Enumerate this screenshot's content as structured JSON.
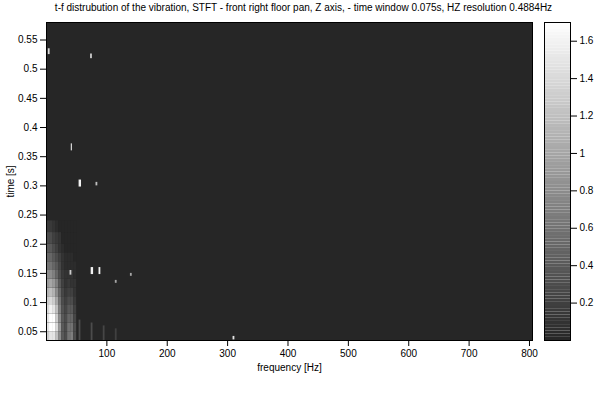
{
  "chart_data": {
    "type": "heatmap",
    "title": "t-f distrubution of the vibration, STFT - front right floor pan, Z axis, - time window 0.075s, HZ resolution 0.4884Hz",
    "x_label": "frequency [Hz]",
    "y_label": "time [s]",
    "xlim": [
      0,
      805
    ],
    "xticks": [
      100,
      200,
      300,
      400,
      500,
      600,
      700,
      800
    ],
    "ylim": [
      0.035,
      0.58
    ],
    "yticks": [
      0.05,
      0.1,
      0.15,
      0.2,
      0.25,
      0.3,
      0.35,
      0.4,
      0.45,
      0.5,
      0.55
    ],
    "colorbar_lim": [
      0,
      1.7
    ],
    "colorbar_ticks": [
      0.2,
      0.4,
      0.6,
      0.8,
      1,
      1.2,
      1.4,
      1.6
    ],
    "grid_cells": {
      "f_edges": [
        0,
        5,
        10,
        15,
        20,
        25,
        30,
        35,
        40,
        45,
        50
      ],
      "t_edges": [
        0.035,
        0.05,
        0.065,
        0.08,
        0.095,
        0.11,
        0.125,
        0.14,
        0.155,
        0.17,
        0.185,
        0.2,
        0.22,
        0.24
      ],
      "values": [
        [
          1.3,
          1.5,
          1.5,
          1.2,
          0.8,
          0.4,
          0.3,
          0.6,
          0.7,
          0.3
        ],
        [
          1.5,
          1.7,
          1.7,
          1.4,
          0.9,
          0.4,
          0.3,
          0.6,
          0.6,
          0.3
        ],
        [
          1.5,
          1.7,
          1.7,
          1.3,
          0.8,
          0.4,
          0.3,
          0.5,
          0.5,
          0.25
        ],
        [
          1.4,
          1.6,
          1.5,
          1.2,
          0.7,
          0.35,
          0.25,
          0.4,
          0.4,
          0.2
        ],
        [
          1.3,
          1.4,
          1.3,
          1.0,
          0.6,
          0.3,
          0.2,
          0.3,
          0.3,
          0.15
        ],
        [
          1.1,
          1.2,
          1.1,
          0.8,
          0.5,
          0.25,
          0.15,
          0.2,
          0.2,
          0.1
        ],
        [
          0.9,
          1.0,
          0.9,
          0.7,
          0.4,
          0.2,
          0.1,
          0.15,
          0.1,
          0.1
        ],
        [
          0.8,
          0.8,
          0.7,
          0.5,
          0.3,
          0.15,
          0.1,
          0.1,
          0.1,
          0.05
        ],
        [
          0.6,
          0.6,
          0.5,
          0.4,
          0.25,
          0.1,
          0.05,
          0.05,
          0.05,
          0.05
        ],
        [
          0.5,
          0.5,
          0.4,
          0.3,
          0.2,
          0.1,
          0.05,
          0.05,
          0.05,
          0
        ],
        [
          0.4,
          0.4,
          0.3,
          0.2,
          0.1,
          0.05,
          0,
          0,
          0,
          0
        ],
        [
          0.3,
          0.3,
          0.2,
          0.15,
          0.1,
          0,
          0,
          0,
          0,
          0
        ],
        [
          0.15,
          0.15,
          0.1,
          0.05,
          0,
          0,
          0,
          0,
          0,
          0
        ]
      ]
    },
    "spots": [
      {
        "f": [
          3,
          6
        ],
        "t": [
          0.525,
          0.535
        ],
        "value": 1.4
      },
      {
        "f": [
          73,
          76
        ],
        "t": [
          0.518,
          0.526
        ],
        "value": 1.3
      },
      {
        "f": [
          41,
          43
        ],
        "t": [
          0.36,
          0.372
        ],
        "value": 1.4
      },
      {
        "f": [
          54,
          58
        ],
        "t": [
          0.298,
          0.31
        ],
        "value": 1.6
      },
      {
        "f": [
          82,
          85
        ],
        "t": [
          0.3,
          0.306
        ],
        "value": 1.2
      },
      {
        "f": [
          39,
          42
        ],
        "t": [
          0.147,
          0.155
        ],
        "value": 1.3
      },
      {
        "f": [
          74,
          78
        ],
        "t": [
          0.148,
          0.16
        ],
        "value": 1.6
      },
      {
        "f": [
          87,
          90
        ],
        "t": [
          0.148,
          0.16
        ],
        "value": 1.6
      },
      {
        "f": [
          114,
          117
        ],
        "t": [
          0.133,
          0.138
        ],
        "value": 1.0
      },
      {
        "f": [
          139,
          142
        ],
        "t": [
          0.145,
          0.15
        ],
        "value": 1.0
      },
      {
        "f": [
          309,
          312
        ],
        "t": [
          0.036,
          0.042
        ],
        "value": 1.5
      },
      {
        "f": [
          54,
          57
        ],
        "t": [
          0.035,
          0.07
        ],
        "value": 0.3
      },
      {
        "f": [
          74,
          77
        ],
        "t": [
          0.035,
          0.065
        ],
        "value": 0.3
      },
      {
        "f": [
          94,
          97
        ],
        "t": [
          0.035,
          0.06
        ],
        "value": 0.25
      },
      {
        "f": [
          114,
          117
        ],
        "t": [
          0.035,
          0.055
        ],
        "value": 0.2
      }
    ]
  }
}
